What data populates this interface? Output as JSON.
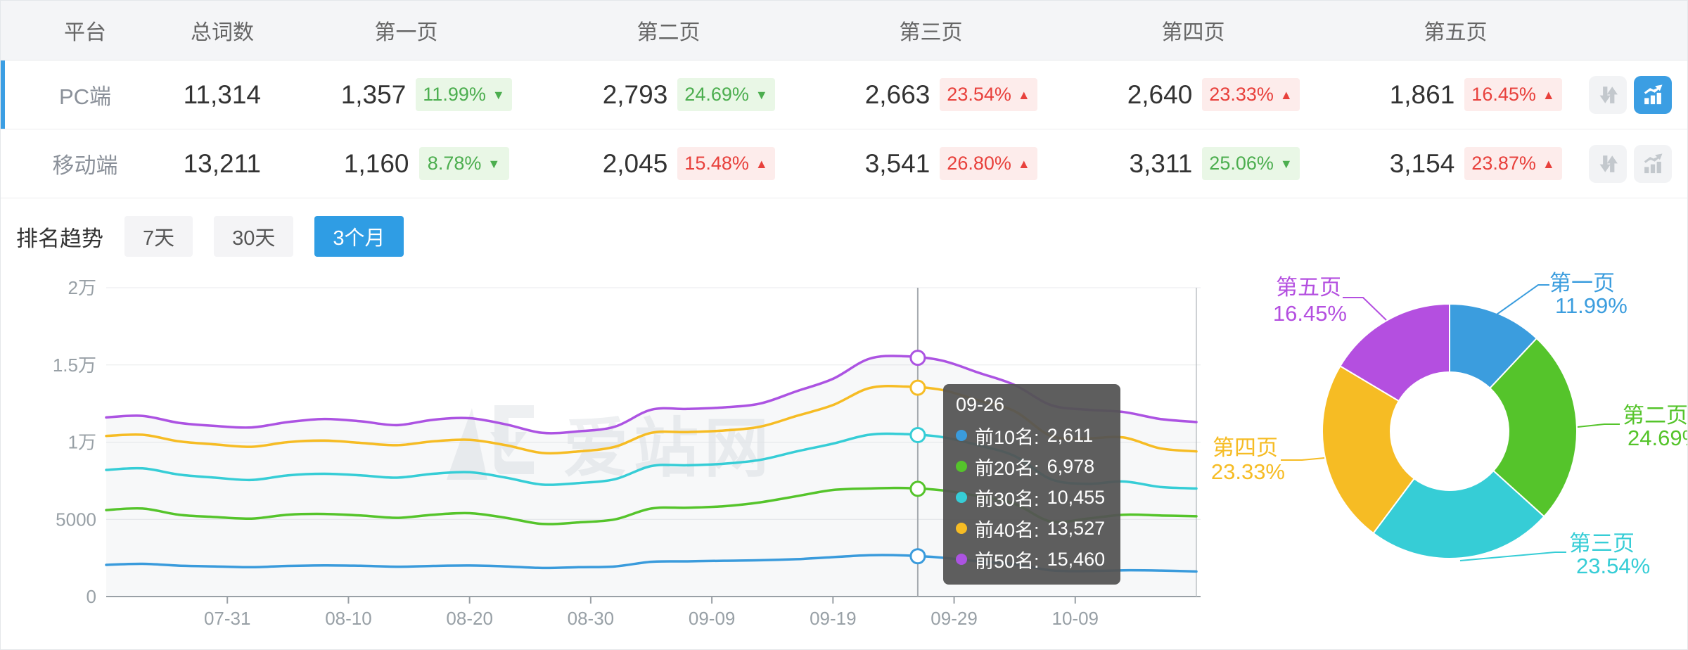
{
  "accent": {
    "blue": "#2f9de4",
    "green_text": "#4cae4f",
    "green_bg": "#e9f7e6",
    "red_text": "#e8413c",
    "red_bg": "#fdeceb",
    "selected_bar": "#3b9ee3"
  },
  "table": {
    "headers": [
      "平台",
      "总词数",
      "第一页",
      "第二页",
      "第三页",
      "第四页",
      "第五页"
    ],
    "rows": [
      {
        "platform": "PC端",
        "total": "11,314",
        "selected": "true",
        "pages": [
          {
            "count": "1,357",
            "pct": "11.99%",
            "trend": "down"
          },
          {
            "count": "2,793",
            "pct": "24.69%",
            "trend": "down"
          },
          {
            "count": "2,663",
            "pct": "23.54%",
            "trend": "up"
          },
          {
            "count": "2,640",
            "pct": "23.33%",
            "trend": "up"
          },
          {
            "count": "1,861",
            "pct": "16.45%",
            "trend": "up"
          }
        ],
        "actions": {
          "compare_active": "false",
          "chart_active": "true"
        }
      },
      {
        "platform": "移动端",
        "total": "13,211",
        "selected": "false",
        "pages": [
          {
            "count": "1,160",
            "pct": "8.78%",
            "trend": "down"
          },
          {
            "count": "2,045",
            "pct": "15.48%",
            "trend": "up"
          },
          {
            "count": "3,541",
            "pct": "26.80%",
            "trend": "up"
          },
          {
            "count": "3,311",
            "pct": "25.06%",
            "trend": "down"
          },
          {
            "count": "3,154",
            "pct": "23.87%",
            "trend": "up"
          }
        ],
        "actions": {
          "compare_active": "false",
          "chart_active": "false"
        }
      }
    ]
  },
  "trend_section": {
    "title": "排名趋势",
    "tabs": [
      {
        "label": "7天",
        "active": "false"
      },
      {
        "label": "30天",
        "active": "false"
      },
      {
        "label": "3个月",
        "active": "true"
      }
    ]
  },
  "watermark": {
    "text": "爱站网"
  },
  "chart_data": [
    {
      "type": "line",
      "title": "排名趋势(3个月)",
      "x_start": "07-21",
      "x_interval_days": 3,
      "x_tick_labels": [
        "07-31",
        "08-10",
        "08-20",
        "08-30",
        "09-09",
        "09-19",
        "09-29",
        "10-09"
      ],
      "y_ticks": [
        {
          "value": 0,
          "label": "0"
        },
        {
          "value": 5000,
          "label": "5000"
        },
        {
          "value": 10000,
          "label": "1万"
        },
        {
          "value": 15000,
          "label": "1.5万"
        },
        {
          "value": 20000,
          "label": "2万"
        }
      ],
      "ylim": [
        0,
        20000
      ],
      "grid": true,
      "series": [
        {
          "name": "前10名",
          "color": "#3a9bdc",
          "values": [
            2050,
            2120,
            2000,
            1950,
            1900,
            1980,
            2020,
            1990,
            1930,
            1980,
            2010,
            1950,
            1850,
            1900,
            1950,
            2250,
            2280,
            2320,
            2350,
            2420,
            2550,
            2680,
            2660,
            2520,
            2280,
            2100,
            1700,
            1650,
            1700,
            1680,
            1620
          ]
        },
        {
          "name": "前20名",
          "color": "#55c42b",
          "values": [
            5600,
            5700,
            5300,
            5150,
            5050,
            5300,
            5350,
            5250,
            5100,
            5300,
            5400,
            5100,
            4700,
            4800,
            5000,
            5700,
            5750,
            5850,
            6100,
            6500,
            6900,
            7000,
            7030,
            6880,
            6500,
            6000,
            4850,
            5050,
            5300,
            5250,
            5200
          ]
        },
        {
          "name": "前30名",
          "color": "#36cdd6",
          "values": [
            8200,
            8300,
            7900,
            7700,
            7550,
            7850,
            7950,
            7850,
            7700,
            7950,
            8050,
            7700,
            7250,
            7350,
            7600,
            8450,
            8500,
            8600,
            8850,
            9400,
            9900,
            10480,
            10520,
            10330,
            9800,
            9100,
            7600,
            7300,
            7450,
            7100,
            7000
          ]
        },
        {
          "name": "前40名",
          "color": "#f6bc24",
          "values": [
            10400,
            10480,
            10050,
            9850,
            9700,
            10000,
            10100,
            9950,
            9800,
            10050,
            10150,
            9800,
            9300,
            9400,
            9700,
            10600,
            10650,
            10750,
            11000,
            11700,
            12400,
            13500,
            13600,
            13380,
            12700,
            12000,
            10400,
            10250,
            10300,
            9600,
            9400
          ]
        },
        {
          "name": "前50名",
          "color": "#ac53e2",
          "values": [
            11600,
            11700,
            11250,
            11050,
            10950,
            11300,
            11500,
            11350,
            11100,
            11450,
            11550,
            11150,
            10600,
            10700,
            11000,
            12100,
            12150,
            12250,
            12500,
            13300,
            14100,
            15400,
            15560,
            15280,
            14500,
            13700,
            12400,
            12100,
            11950,
            11500,
            11300
          ]
        }
      ],
      "cursor": {
        "date": "09-26"
      },
      "tooltip": {
        "title": "09-26",
        "items": [
          {
            "name": "前10名",
            "value": "2,611",
            "color": "#3a9bdc"
          },
          {
            "name": "前20名",
            "value": "6,978",
            "color": "#55c42b"
          },
          {
            "name": "前30名",
            "value": "10,455",
            "color": "#36cdd6"
          },
          {
            "name": "前40名",
            "value": "13,527",
            "color": "#f6bc24"
          },
          {
            "name": "前50名",
            "value": "15,460",
            "color": "#ac53e2"
          }
        ]
      },
      "legend_position": "none"
    },
    {
      "type": "pie",
      "subtype": "donut",
      "labels": [
        "第一页",
        "第二页",
        "第三页",
        "第四页",
        "第五页"
      ],
      "values": [
        11.99,
        24.69,
        23.54,
        23.33,
        16.45
      ],
      "colors": [
        "#3b9dde",
        "#55c42b",
        "#36cdd6",
        "#f6bc24",
        "#b44fe0"
      ]
    }
  ]
}
